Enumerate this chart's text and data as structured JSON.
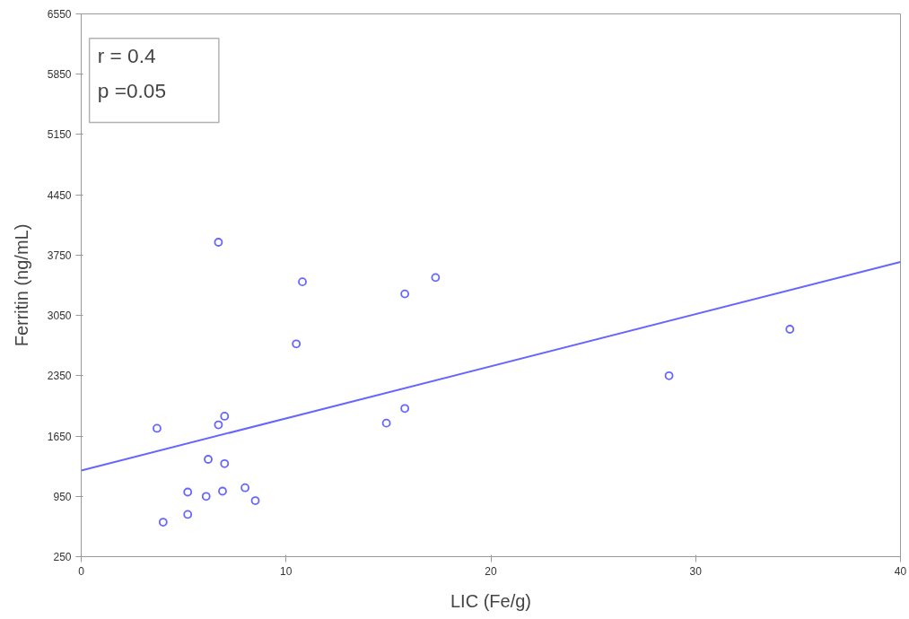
{
  "chart_data": {
    "type": "scatter",
    "xlabel": "LIC (Fe/g)",
    "ylabel": "Ferritin (ng/mL)",
    "xlim": [
      0,
      40
    ],
    "ylim": [
      250,
      6550
    ],
    "xticks": [
      0,
      10,
      20,
      30,
      40
    ],
    "yticks": [
      250,
      950,
      1650,
      2350,
      3050,
      3750,
      4450,
      5150,
      5850,
      6550
    ],
    "grid": false,
    "marker": "circle",
    "annotations": [
      "r = 0.4",
      "p =0.05"
    ],
    "series": [
      {
        "color": "#6666ff",
        "x": [
          6.7,
          10.8,
          17.3,
          15.8,
          10.5,
          34.6,
          28.7,
          15.8,
          14.9,
          7.0,
          6.7,
          3.7,
          6.2,
          7.0,
          8.0,
          5.2,
          6.9,
          6.1,
          8.5,
          5.2,
          4.0
        ],
        "values": [
          3900,
          3440,
          3490,
          3300,
          2720,
          2890,
          2350,
          1970,
          1800,
          1880,
          1780,
          1740,
          1380,
          1330,
          1050,
          1000,
          1010,
          950,
          900,
          740,
          650
        ]
      },
      {
        "type": "line",
        "color": "#6666ff",
        "marker": "none",
        "x": [
          0,
          40
        ],
        "values": [
          1250,
          3670
        ]
      }
    ]
  }
}
